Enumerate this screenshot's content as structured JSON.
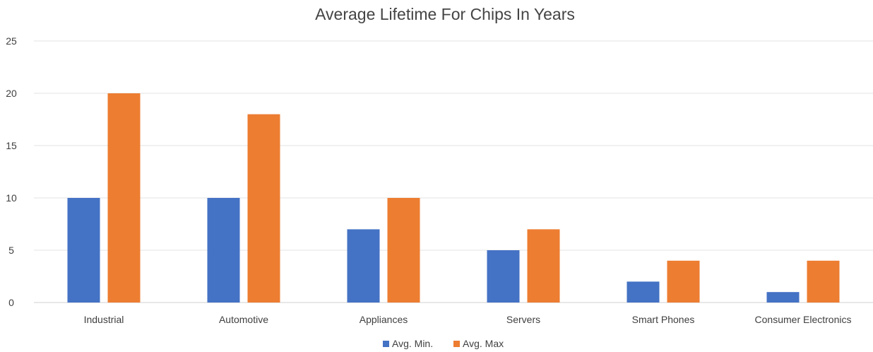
{
  "chart_data": {
    "type": "bar",
    "title": "Average Lifetime For Chips In Years",
    "categories": [
      "Industrial",
      "Automotive",
      "Appliances",
      "Servers",
      "Smart Phones",
      "Consumer Electronics"
    ],
    "series": [
      {
        "name": "Avg. Min.",
        "values": [
          10,
          10,
          7,
          5,
          2,
          1
        ],
        "color": "#4472C4"
      },
      {
        "name": "Avg. Max",
        "values": [
          20,
          18,
          10,
          7,
          4,
          4
        ],
        "color": "#ED7D31"
      }
    ],
    "ylim": [
      0,
      25
    ],
    "yticks": [
      0,
      5,
      10,
      15,
      20,
      25
    ],
    "grid": true,
    "legend_position": "bottom"
  }
}
